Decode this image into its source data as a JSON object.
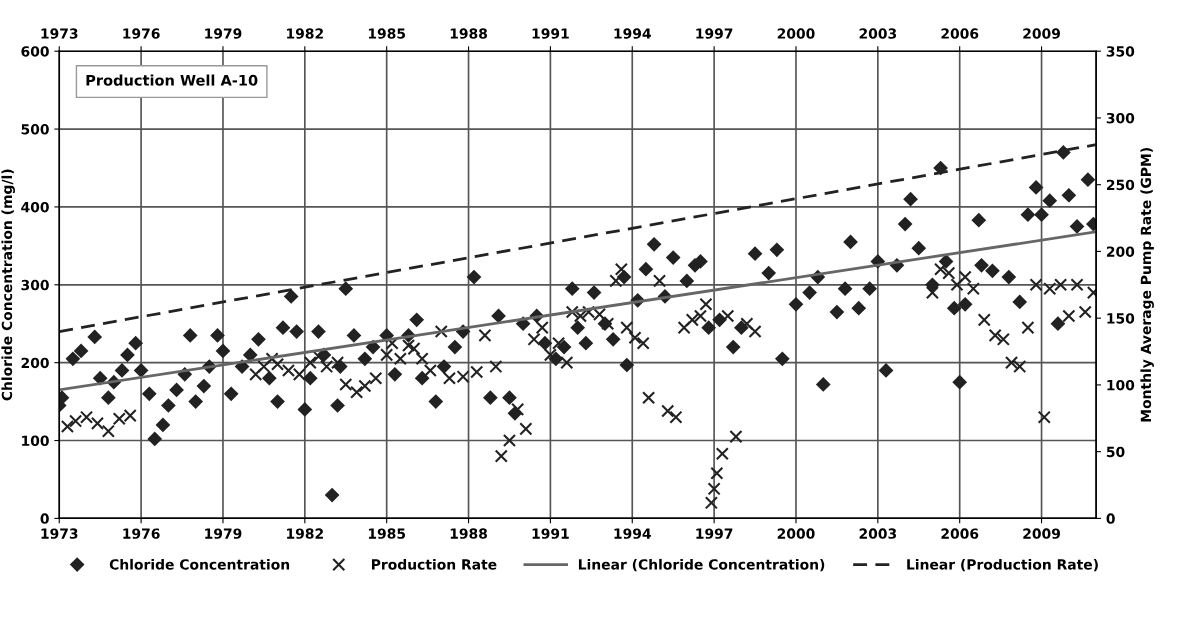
{
  "chart_data": {
    "type": "scatter",
    "ylabel": "Chloride Concentration (mg/l)",
    "y2label": "Monthly Average Pump Rate (GPM)",
    "annotations": [
      "Production Well A-10"
    ],
    "xlim": [
      1973,
      2011
    ],
    "xticks": [
      1973,
      1976,
      1979,
      1982,
      1985,
      1988,
      1991,
      1994,
      1997,
      2000,
      2003,
      2006,
      2009
    ],
    "x2lim": [
      1973,
      2011
    ],
    "x2ticks": [
      1973,
      1976,
      1979,
      1982,
      1985,
      1988,
      1991,
      1994,
      1997,
      2000,
      2003,
      2006,
      2009
    ],
    "ylim": [
      0,
      600
    ],
    "yticks": [
      0,
      100,
      200,
      300,
      400,
      500,
      600
    ],
    "y2lim": [
      0,
      350
    ],
    "y2ticks": [
      0,
      50,
      100,
      150,
      200,
      250,
      300,
      350
    ],
    "grid": true,
    "legend": "bottom",
    "series": [
      {
        "name": "Chloride Concentration",
        "marker": "diamond",
        "color": "#222222",
        "x": [
          1973.0,
          1973.1,
          1973.5,
          1973.8,
          1974.3,
          1974.5,
          1974.8,
          1975.0,
          1975.3,
          1975.5,
          1975.8,
          1976.0,
          1976.3,
          1976.5,
          1976.8,
          1977.0,
          1977.3,
          1977.6,
          1977.8,
          1978.0,
          1978.3,
          1978.5,
          1978.8,
          1979.0,
          1979.3,
          1979.7,
          1980.0,
          1980.3,
          1980.7,
          1981.0,
          1981.2,
          1981.5,
          1981.7,
          1982.0,
          1982.2,
          1982.5,
          1982.7,
          1983.0,
          1983.2,
          1983.3,
          1983.5,
          1983.8,
          1984.2,
          1984.5,
          1985.0,
          1985.3,
          1985.8,
          1986.1,
          1986.3,
          1986.8,
          1987.1,
          1987.5,
          1987.8,
          1988.2,
          1988.8,
          1989.1,
          1989.5,
          1989.7,
          1990.0,
          1990.5,
          1990.8,
          1991.2,
          1991.5,
          1991.8,
          1992.0,
          1992.3,
          1992.6,
          1993.0,
          1993.3,
          1993.7,
          1993.8,
          1994.2,
          1994.5,
          1994.8,
          1995.2,
          1995.5,
          1996.0,
          1996.3,
          1996.5,
          1996.8,
          1997.2,
          1997.7,
          1998.0,
          1998.5,
          1999.0,
          1999.3,
          1999.5,
          2000.0,
          2000.5,
          2000.8,
          2001.0,
          2001.5,
          2001.8,
          2002.0,
          2002.3,
          2002.7,
          2003.0,
          2003.3,
          2003.7,
          2004.0,
          2004.2,
          2004.5,
          2005.0,
          2005.3,
          2005.5,
          2005.8,
          2006.0,
          2006.2,
          2006.7,
          2006.8,
          2007.2,
          2007.8,
          2008.2,
          2008.5,
          2008.8,
          2009.0,
          2009.3,
          2009.6,
          2009.8,
          2010.0,
          2010.3,
          2010.7,
          2010.9
        ],
        "values": [
          145,
          155,
          205,
          215,
          233,
          180,
          155,
          175,
          190,
          210,
          225,
          190,
          160,
          102,
          120,
          145,
          165,
          185,
          235,
          150,
          170,
          195,
          235,
          215,
          160,
          195,
          210,
          230,
          180,
          150,
          245,
          285,
          240,
          140,
          180,
          240,
          210,
          30,
          145,
          195,
          295,
          235,
          205,
          220,
          235,
          185,
          235,
          255,
          180,
          150,
          195,
          220,
          240,
          310,
          155,
          260,
          155,
          135,
          250,
          260,
          225,
          205,
          220,
          295,
          245,
          225,
          290,
          250,
          230,
          310,
          197,
          280,
          320,
          352,
          285,
          335,
          305,
          325,
          330,
          245,
          255,
          220,
          245,
          340,
          315,
          345,
          205,
          275,
          290,
          310,
          172,
          265,
          295,
          355,
          270,
          295,
          330,
          190,
          325,
          378,
          410,
          347,
          300,
          450,
          330,
          270,
          175,
          275,
          383,
          325,
          318,
          310,
          278,
          390,
          425,
          390,
          408,
          250,
          470,
          415,
          375,
          435,
          378
        ]
      },
      {
        "name": "Production Rate",
        "marker": "cross",
        "color": "#222222",
        "x": [
          1973.3,
          1973.6,
          1974.0,
          1974.4,
          1974.8,
          1975.2,
          1975.6,
          1980.2,
          1980.5,
          1980.8,
          1981.0,
          1981.4,
          1981.8,
          1982.2,
          1982.5,
          1982.8,
          1983.2,
          1983.5,
          1983.9,
          1984.2,
          1984.6,
          1985.0,
          1985.2,
          1985.5,
          1985.8,
          1986.0,
          1986.3,
          1986.6,
          1987.0,
          1987.3,
          1987.8,
          1988.3,
          1988.6,
          1989.0,
          1989.2,
          1989.5,
          1989.8,
          1990.1,
          1990.4,
          1990.7,
          1991.0,
          1991.3,
          1991.6,
          1991.8,
          1992.1,
          1992.4,
          1992.8,
          1993.1,
          1993.4,
          1993.6,
          1993.8,
          1994.1,
          1994.4,
          1994.6,
          1995.0,
          1995.3,
          1995.6,
          1995.9,
          1996.2,
          1996.5,
          1996.7,
          1996.9,
          1997.0,
          1997.1,
          1997.3,
          1997.5,
          1997.8,
          1998.2,
          1998.5,
          2005.0,
          2005.3,
          2005.6,
          2005.9,
          2006.2,
          2006.5,
          2006.9,
          2007.3,
          2007.6,
          2007.9,
          2008.2,
          2008.5,
          2008.8,
          2009.1,
          2009.3,
          2009.7,
          2010.0,
          2010.3,
          2010.6,
          2010.9
        ],
        "values": [
          118,
          125,
          130,
          122,
          112,
          128,
          132,
          185,
          195,
          205,
          198,
          190,
          185,
          200,
          208,
          195,
          200,
          172,
          162,
          170,
          180,
          210,
          225,
          205,
          222,
          218,
          205,
          190,
          240,
          180,
          182,
          188,
          235,
          195,
          80,
          100,
          140,
          115,
          230,
          245,
          210,
          225,
          200,
          265,
          260,
          265,
          262,
          250,
          305,
          320,
          245,
          232,
          225,
          155,
          305,
          138,
          130,
          245,
          255,
          260,
          275,
          20,
          38,
          58,
          83,
          260,
          105,
          250,
          240,
          290,
          320,
          315,
          300,
          310,
          295,
          255,
          235,
          230,
          200,
          195,
          245,
          300,
          130,
          295,
          300,
          260,
          300,
          265,
          290
        ]
      },
      {
        "name": "Linear (Chloride Concentration)",
        "type": "line",
        "line_style": "solid",
        "marker": "none",
        "color": "#666666",
        "x": [
          1973,
          2011
        ],
        "values": [
          165,
          368
        ]
      },
      {
        "name": "Linear (Production Rate)",
        "type": "line",
        "line_style": "dashed",
        "marker": "none",
        "color": "#222222",
        "axis": "y2",
        "x": [
          1973,
          2011
        ],
        "values": [
          140,
          280
        ]
      }
    ]
  }
}
